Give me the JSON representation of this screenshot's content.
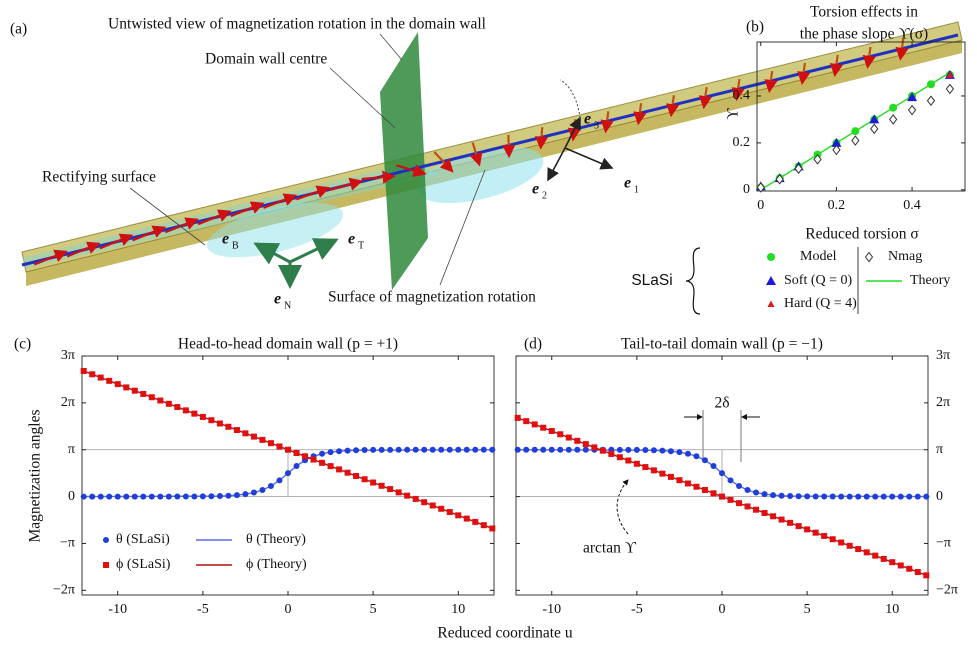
{
  "panel_a": {
    "label": "(a)",
    "annotations": [
      "Untwisted view of magnetization rotation in the domain wall",
      "Domain wall centre",
      "Rectifying surface",
      "Surface of magnetization rotation"
    ],
    "frame_vectors": [
      {
        "symbol": "e",
        "subscript": "3"
      },
      {
        "symbol": "e",
        "subscript": "2"
      },
      {
        "symbol": "e",
        "subscript": "1"
      }
    ],
    "wall_frame": [
      {
        "symbol": "e",
        "subscript": "B"
      },
      {
        "symbol": "e",
        "subscript": "T"
      },
      {
        "symbol": "e",
        "subscript": "N"
      }
    ]
  },
  "chart_data": [
    {
      "type": "scatter",
      "panel_label": "(b)",
      "title": [
        "Torsion effects in",
        "the phase slope ϒ(σ)"
      ],
      "xlabel": "Reduced torsion σ",
      "ylabel": "ϒ",
      "xlim": [
        -0.01,
        0.54
      ],
      "ylim": [
        -0.005,
        0.63
      ],
      "xticks": [
        0,
        0.2,
        0.4
      ],
      "yticks": [
        0,
        0.2,
        0.4
      ],
      "y_axis_side": "left",
      "legend": true,
      "legend_group": "SLaSi",
      "series": [
        {
          "name": "Model",
          "color": "#22dd22",
          "marker": "circle",
          "x": [
            0,
            0.05,
            0.1,
            0.15,
            0.2,
            0.25,
            0.3,
            0.35,
            0.4,
            0.45,
            0.5
          ],
          "values": [
            0.01,
            0.05,
            0.1,
            0.15,
            0.2,
            0.25,
            0.3,
            0.35,
            0.4,
            0.45,
            0.49
          ]
        },
        {
          "name": "Soft (Q = 0)",
          "color": "#1a1ad8",
          "marker": "triangle",
          "x": [
            0,
            0.05,
            0.1,
            0.2,
            0.3,
            0.4,
            0.5
          ],
          "values": [
            0.015,
            0.05,
            0.1,
            0.2,
            0.3,
            0.395,
            0.49
          ]
        },
        {
          "name": "Hard (Q = 4)",
          "color": "#e01818",
          "marker": "small-triangle",
          "x": [
            0,
            0.5
          ],
          "values": [
            0.015,
            0.49
          ]
        },
        {
          "name": "Nmag",
          "color": "#333333",
          "marker": "diamond",
          "x": [
            0,
            0.05,
            0.1,
            0.15,
            0.2,
            0.25,
            0.3,
            0.35,
            0.4,
            0.45,
            0.5
          ],
          "values": [
            0.01,
            0.045,
            0.09,
            0.13,
            0.17,
            0.21,
            0.26,
            0.3,
            0.34,
            0.38,
            0.43
          ]
        },
        {
          "name": "Theory",
          "color": "#22dd22",
          "marker": "line",
          "x": [
            0,
            0.5
          ],
          "values": [
            0,
            0.5
          ]
        }
      ]
    },
    {
      "type": "line",
      "panel_label": "(c)",
      "title": "Head-to-head domain wall (p = +1)",
      "xlabel": "Reduced coordinate u",
      "ylabel": "Magnetization angles",
      "x": [
        -12,
        -11.5,
        -11,
        -10.5,
        -10,
        -9.5,
        -9,
        -8.5,
        -8,
        -7.5,
        -7,
        -6.5,
        -6,
        -5.5,
        -5,
        -4.5,
        -4,
        -3.5,
        -3,
        -2.5,
        -2,
        -1.5,
        -1,
        -0.5,
        0,
        0.5,
        1,
        1.5,
        2,
        2.5,
        3,
        3.5,
        4,
        4.5,
        5,
        5.5,
        6,
        6.5,
        7,
        7.5,
        8,
        8.5,
        9,
        9.5,
        10,
        10.5,
        11,
        11.5,
        12
      ],
      "xlim": [
        -12.1,
        12.1
      ],
      "ylim": [
        -2.1,
        3.0
      ],
      "xticks": [
        -10,
        -5,
        0,
        5,
        10
      ],
      "yticks": [
        {
          "value": -2,
          "label": "−2π"
        },
        {
          "value": -1,
          "label": "−π"
        },
        0,
        {
          "value": 1,
          "label": "π"
        },
        {
          "value": 2,
          "label": "2π"
        },
        {
          "value": 3,
          "label": "3π"
        }
      ],
      "y_axis_side": "left",
      "hlines": [
        0,
        1
      ],
      "legend": true,
      "series": [
        {
          "name": "θ (SLaSi)",
          "color": "#1f3fd8",
          "marker": "dot",
          "values": [
            0,
            0,
            0,
            0,
            0,
            0,
            0,
            0,
            0,
            0,
            0,
            0.001,
            0.002,
            0.003,
            0.004,
            0.007,
            0.012,
            0.019,
            0.032,
            0.052,
            0.086,
            0.14,
            0.225,
            0.347,
            0.5,
            0.653,
            0.775,
            0.86,
            0.914,
            0.948,
            0.968,
            0.981,
            0.988,
            0.993,
            0.996,
            0.997,
            0.998,
            0.999,
            1,
            1,
            1,
            1,
            1,
            1,
            1,
            1,
            1,
            1,
            1
          ]
        },
        {
          "name": "θ (Theory)",
          "color": "#5a6ae8",
          "marker": "line",
          "x": [
            -12,
            -4,
            -3.5,
            -3,
            -2.5,
            -2,
            -1.5,
            -1,
            -0.5,
            0,
            0.5,
            1,
            1.5,
            2,
            2.5,
            3,
            3.5,
            4,
            12
          ],
          "values": [
            0,
            0.012,
            0.019,
            0.032,
            0.052,
            0.086,
            0.14,
            0.225,
            0.347,
            0.5,
            0.653,
            0.775,
            0.86,
            0.914,
            0.948,
            0.968,
            0.981,
            0.988,
            1
          ]
        },
        {
          "name": "ϕ (SLaSi)",
          "color": "#e01010",
          "marker": "square",
          "values": [
            2.68,
            2.61,
            2.54,
            2.47,
            2.4,
            2.33,
            2.26,
            2.19,
            2.12,
            2.05,
            1.98,
            1.91,
            1.84,
            1.77,
            1.7,
            1.63,
            1.56,
            1.49,
            1.42,
            1.35,
            1.28,
            1.21,
            1.14,
            1.07,
            1,
            0.93,
            0.86,
            0.79,
            0.72,
            0.65,
            0.58,
            0.51,
            0.44,
            0.37,
            0.3,
            0.23,
            0.16,
            0.09,
            0.02,
            -0.05,
            -0.12,
            -0.19,
            -0.26,
            -0.33,
            -0.4,
            -0.47,
            -0.54,
            -0.61,
            -0.68
          ]
        },
        {
          "name": "ϕ (Theory)",
          "color": "#b01010",
          "marker": "line",
          "x": [
            -12,
            12
          ],
          "values": [
            2.68,
            -0.68
          ]
        }
      ]
    },
    {
      "type": "line",
      "panel_label": "(d)",
      "title": "Tail-to-tail domain wall (p = −1)",
      "x": [
        -12,
        -11.5,
        -11,
        -10.5,
        -10,
        -9.5,
        -9,
        -8.5,
        -8,
        -7.5,
        -7,
        -6.5,
        -6,
        -5.5,
        -5,
        -4.5,
        -4,
        -3.5,
        -3,
        -2.5,
        -2,
        -1.5,
        -1,
        -0.5,
        0,
        0.5,
        1,
        1.5,
        2,
        2.5,
        3,
        3.5,
        4,
        4.5,
        5,
        5.5,
        6,
        6.5,
        7,
        7.5,
        8,
        8.5,
        9,
        9.5,
        10,
        10.5,
        11,
        11.5,
        12
      ],
      "xlim": [
        -12.1,
        12.1
      ],
      "ylim": [
        -2.1,
        3.0
      ],
      "xticks": [
        -10,
        -5,
        0,
        5,
        10
      ],
      "yticks": [
        {
          "value": -2,
          "label": "−2π"
        },
        {
          "value": -1,
          "label": "−π"
        },
        0,
        {
          "value": 1,
          "label": "π"
        },
        {
          "value": 2,
          "label": "2π"
        },
        {
          "value": 3,
          "label": "3π"
        }
      ],
      "y_axis_side": "right",
      "hlines": [
        0,
        1
      ],
      "legend": false,
      "annotations": [
        "2δ",
        "arctan ϒ"
      ],
      "series": [
        {
          "name": "θ (SLaSi)",
          "color": "#1f3fd8",
          "marker": "dot",
          "values": [
            1,
            1,
            1,
            1,
            1,
            1,
            1,
            1,
            1,
            1,
            1,
            0.999,
            0.998,
            0.997,
            0.996,
            0.993,
            0.988,
            0.981,
            0.968,
            0.948,
            0.914,
            0.86,
            0.775,
            0.653,
            0.5,
            0.347,
            0.225,
            0.14,
            0.086,
            0.052,
            0.032,
            0.019,
            0.012,
            0.007,
            0.004,
            0.003,
            0.002,
            0.001,
            0,
            0,
            0,
            0,
            0,
            0,
            0,
            0,
            0,
            0,
            0
          ]
        },
        {
          "name": "θ (Theory)",
          "color": "#5a6ae8",
          "marker": "line",
          "x": [
            -12,
            -4,
            -3.5,
            -3,
            -2.5,
            -2,
            -1.5,
            -1,
            -0.5,
            0,
            0.5,
            1,
            1.5,
            2,
            2.5,
            3,
            3.5,
            4,
            12
          ],
          "values": [
            1,
            0.988,
            0.981,
            0.968,
            0.948,
            0.914,
            0.86,
            0.775,
            0.653,
            0.5,
            0.347,
            0.225,
            0.14,
            0.086,
            0.052,
            0.032,
            0.019,
            0.012,
            0
          ]
        },
        {
          "name": "ϕ (SLaSi)",
          "color": "#e01010",
          "marker": "square",
          "values": [
            1.68,
            1.61,
            1.54,
            1.47,
            1.4,
            1.33,
            1.26,
            1.19,
            1.12,
            1.05,
            0.98,
            0.91,
            0.84,
            0.77,
            0.7,
            0.63,
            0.56,
            0.49,
            0.42,
            0.35,
            0.28,
            0.21,
            0.14,
            0.07,
            0,
            -0.07,
            -0.14,
            -0.21,
            -0.28,
            -0.35,
            -0.42,
            -0.49,
            -0.56,
            -0.63,
            -0.7,
            -0.77,
            -0.84,
            -0.91,
            -0.98,
            -1.05,
            -1.12,
            -1.19,
            -1.26,
            -1.33,
            -1.4,
            -1.47,
            -1.54,
            -1.61,
            -1.68
          ]
        },
        {
          "name": "ϕ (Theory)",
          "color": "#b01010",
          "marker": "line",
          "x": [
            -12,
            12
          ],
          "values": [
            1.68,
            -1.68
          ]
        }
      ]
    }
  ]
}
